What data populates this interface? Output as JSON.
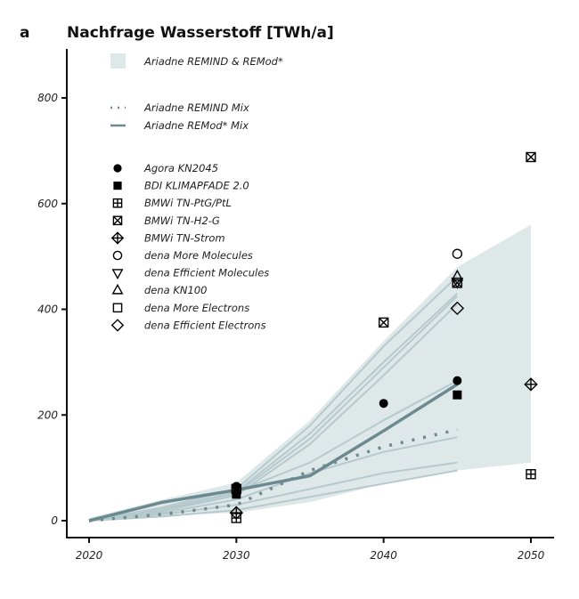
{
  "chart_data": {
    "type": "line",
    "panel_label": "a",
    "title": "Nachfrage Wasserstoff [TWh/a]",
    "xlabel": "",
    "ylabel": "",
    "xlim": [
      2018,
      2051.5
    ],
    "ylim": [
      -30,
      860
    ],
    "x_ticks": [
      2020,
      2030,
      2040,
      2050
    ],
    "x_tick_labels": [
      "2020",
      "2030",
      "2040",
      "2050"
    ],
    "y_ticks": [
      0,
      200,
      400,
      600,
      800
    ],
    "y_tick_labels": [
      "0",
      "200",
      "400",
      "600",
      "800"
    ],
    "grid": false,
    "legend_position": "top-left",
    "colors": {
      "band": "#dfe8e9",
      "thin_lines": "#b6c9cc",
      "mix_line": "#6a8a90",
      "markers": "#000000"
    },
    "band": {
      "name": "Ariadne REMIND & REMod*",
      "x": [
        2020,
        2025,
        2030,
        2035,
        2040,
        2045,
        2050
      ],
      "upper": [
        5,
        40,
        72,
        190,
        340,
        480,
        560
      ],
      "lower": [
        0,
        10,
        15,
        35,
        70,
        95,
        110
      ]
    },
    "lines": [
      {
        "name": "Ariadne REMIND Mix",
        "style": "dotted",
        "x": [
          2020,
          2025,
          2030,
          2035,
          2040,
          2045
        ],
        "y": [
          0,
          12,
          30,
          95,
          140,
          172
        ]
      },
      {
        "name": "Ariadne REMod* Mix",
        "style": "solid",
        "x": [
          2020,
          2025,
          2030,
          2035,
          2040,
          2045
        ],
        "y": [
          0,
          35,
          58,
          85,
          170,
          258
        ]
      }
    ],
    "scenario_lines": [
      {
        "x": [
          2020,
          2025,
          2030,
          2035,
          2040,
          2045
        ],
        "y": [
          0,
          25,
          60,
          180,
          330,
          462
        ]
      },
      {
        "x": [
          2020,
          2025,
          2030,
          2035,
          2040,
          2045
        ],
        "y": [
          0,
          22,
          55,
          165,
          300,
          430
        ]
      },
      {
        "x": [
          2020,
          2025,
          2030,
          2035,
          2040,
          2045
        ],
        "y": [
          0,
          20,
          52,
          155,
          290,
          425
        ]
      },
      {
        "x": [
          2020,
          2025,
          2030,
          2035,
          2040,
          2045
        ],
        "y": [
          0,
          18,
          48,
          145,
          275,
          410
        ]
      },
      {
        "x": [
          2020,
          2025,
          2030,
          2035,
          2040,
          2045
        ],
        "y": [
          0,
          20,
          55,
          110,
          190,
          265
        ]
      },
      {
        "x": [
          2020,
          2025,
          2030,
          2035,
          2040,
          2045
        ],
        "y": [
          0,
          15,
          40,
          90,
          130,
          158
        ]
      },
      {
        "x": [
          2020,
          2025,
          2030,
          2035,
          2040,
          2045
        ],
        "y": [
          0,
          12,
          30,
          60,
          90,
          110
        ]
      },
      {
        "x": [
          2020,
          2025,
          2030,
          2035,
          2040,
          2045
        ],
        "y": [
          0,
          8,
          20,
          45,
          70,
          95
        ]
      }
    ],
    "scenarios": [
      {
        "name": "Agora KN2045",
        "marker": "filled-circle",
        "points": [
          {
            "x": 2030,
            "y": 65
          },
          {
            "x": 2040,
            "y": 222
          },
          {
            "x": 2045,
            "y": 265
          }
        ]
      },
      {
        "name": "BDI KLIMAPFADE 2.0",
        "marker": "filled-square",
        "points": [
          {
            "x": 2030,
            "y": 50
          },
          {
            "x": 2045,
            "y": 238
          }
        ]
      },
      {
        "name": "BMWi TN-PtG/PtL",
        "marker": "square-plus",
        "points": [
          {
            "x": 2030,
            "y": 5
          },
          {
            "x": 2050,
            "y": 88
          }
        ]
      },
      {
        "name": "BMWi TN-H2-G",
        "marker": "square-cross",
        "points": [
          {
            "x": 2030,
            "y": 60
          },
          {
            "x": 2040,
            "y": 375
          },
          {
            "x": 2045,
            "y": 450
          },
          {
            "x": 2050,
            "y": 688
          }
        ]
      },
      {
        "name": "BMWi TN-Strom",
        "marker": "diamond-plus",
        "points": [
          {
            "x": 2030,
            "y": 15
          },
          {
            "x": 2050,
            "y": 258
          }
        ]
      },
      {
        "name": "dena More Molecules",
        "marker": "open-circle",
        "points": [
          {
            "x": 2045,
            "y": 505
          }
        ]
      },
      {
        "name": "dena Efficient Molecules",
        "marker": "open-triangle-down",
        "points": [
          {
            "x": 2045,
            "y": 452
          }
        ]
      },
      {
        "name": "dena KN100",
        "marker": "open-triangle-up",
        "points": [
          {
            "x": 2045,
            "y": 462
          }
        ]
      },
      {
        "name": "dena More Electrons",
        "marker": "open-square",
        "points": [
          {
            "x": 2045,
            "y": 450
          }
        ]
      },
      {
        "name": "dena Efficient Electrons",
        "marker": "open-diamond",
        "points": [
          {
            "x": 2045,
            "y": 402
          }
        ]
      }
    ]
  }
}
